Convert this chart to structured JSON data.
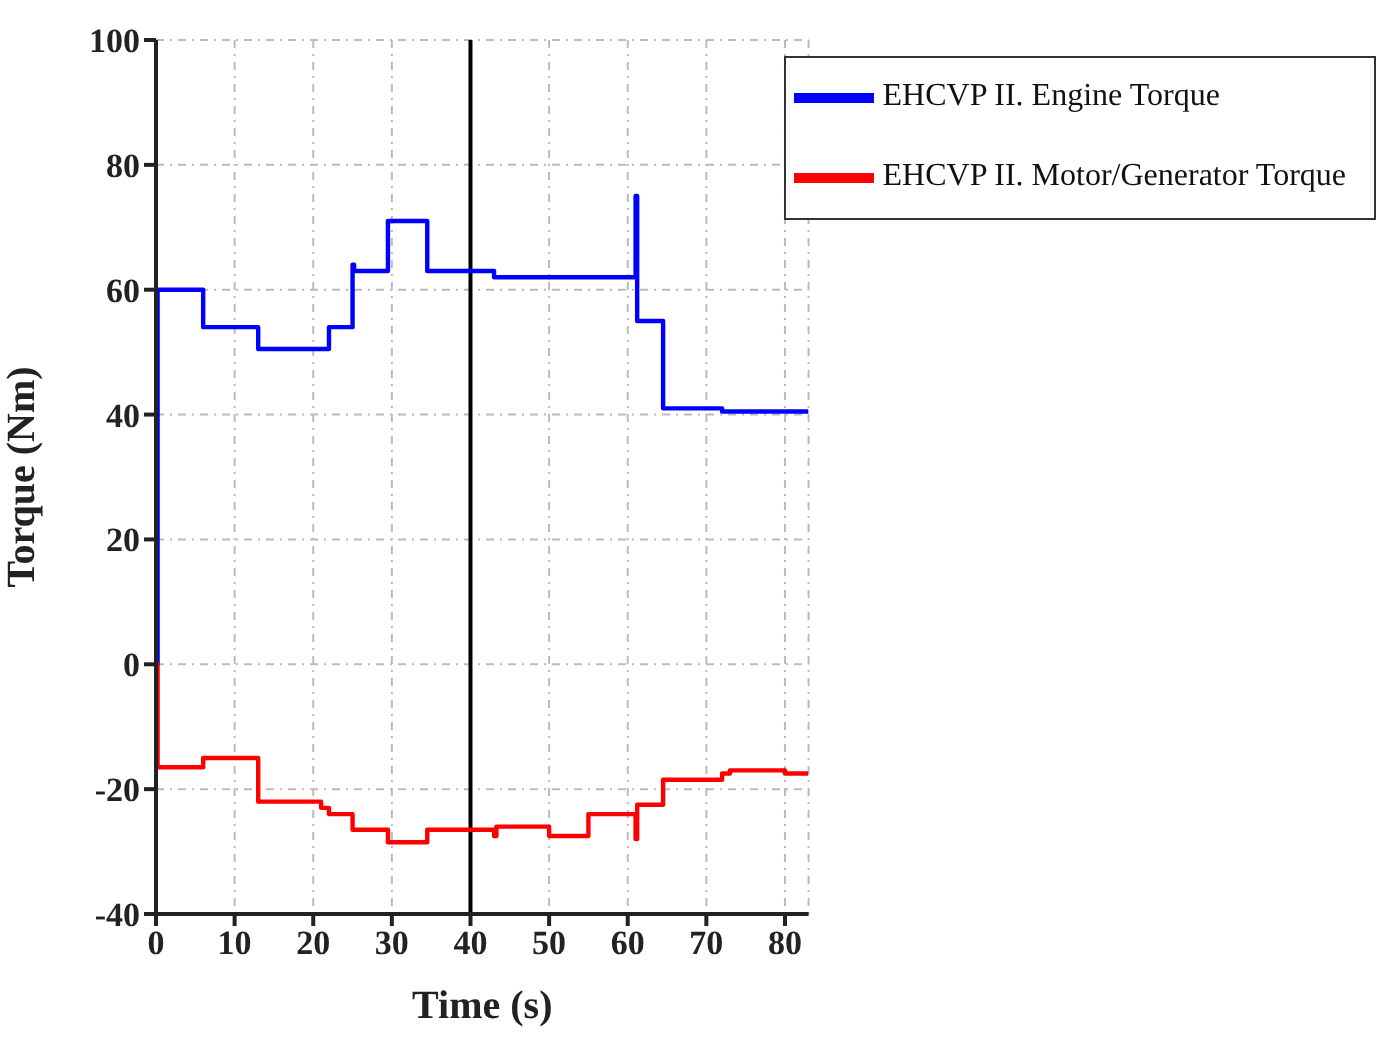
{
  "chart_data": {
    "type": "step",
    "xlabel": "Time (s)",
    "ylabel": "Torque (Nm)",
    "xlim": [
      0,
      83
    ],
    "xticks": [
      0,
      10,
      20,
      30,
      40,
      50,
      60,
      70,
      80
    ],
    "ylim": [
      -40,
      100
    ],
    "yticks": [
      -40,
      -20,
      0,
      20,
      40,
      60,
      80,
      100
    ],
    "grid": true,
    "legend": "top right",
    "line_style": "solid",
    "marker": "none",
    "ref_lines": [
      {
        "axis": "x",
        "value": 40,
        "color": "#000000"
      }
    ],
    "series": [
      {
        "name": "EHCVP II. Engine Torque",
        "color": "#0000ff",
        "x": [
          0,
          0.2,
          6,
          13,
          22,
          25,
          25.2,
          29.5,
          34.5,
          43,
          61,
          61.2,
          64.5,
          72,
          83
        ],
        "values": [
          0,
          60,
          54,
          50.5,
          54,
          64,
          63,
          71,
          63,
          62,
          75,
          55,
          41,
          40.5,
          40.5
        ]
      },
      {
        "name": "EHCVP II. Motor/Generator Torque",
        "color": "#ff0000",
        "x": [
          0,
          0.2,
          6,
          13,
          21,
          22,
          25,
          29.5,
          34.5,
          43,
          43.3,
          50,
          55,
          61,
          61.2,
          64.5,
          72,
          73,
          80,
          83
        ],
        "values": [
          0,
          -16.5,
          -15,
          -22,
          -23,
          -24,
          -26.5,
          -28.5,
          -26.5,
          -27.5,
          -26,
          -27.5,
          -24,
          -28,
          -22.5,
          -18.5,
          -17.5,
          -17,
          -17.5,
          -17.5
        ]
      }
    ]
  }
}
